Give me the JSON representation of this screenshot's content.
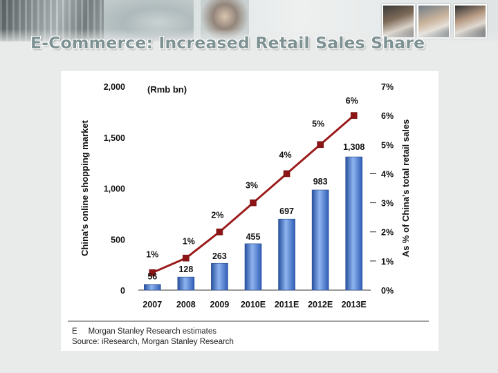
{
  "header": {
    "title": "E-Commerce: Increased Retail Sales Share"
  },
  "chart_data": {
    "type": "bar",
    "unit_note": "(Rmb bn)",
    "ylabel": "China's online shopping market",
    "y2label": "As % of China's total retail sales",
    "categories": [
      "2007",
      "2008",
      "2009",
      "2010E",
      "2011E",
      "2012E",
      "2013E"
    ],
    "ylim": [
      0,
      2000
    ],
    "yticks": [
      "0",
      "500",
      "1,000",
      "1,500",
      "2,000"
    ],
    "y2lim": [
      0,
      7
    ],
    "y2ticks": [
      "0%",
      "1%",
      "2%",
      "3%",
      "4%",
      "5%",
      "6%",
      "7%"
    ],
    "series": [
      {
        "type": "bar",
        "values": [
          56,
          128,
          263,
          455,
          697,
          983,
          1308
        ],
        "labels": [
          "56",
          "128",
          "263",
          "455",
          "697",
          "983",
          "1,308"
        ],
        "color": "#4d7fd1"
      },
      {
        "type": "line",
        "axis": "right",
        "values": [
          0.6,
          1.1,
          2.0,
          3.0,
          4.0,
          5.0,
          6.0
        ],
        "labels": [
          "1%",
          "1%",
          "2%",
          "3%",
          "4%",
          "5%",
          "6%"
        ],
        "color": "#9b1b1b"
      }
    ],
    "grid": false,
    "legend": "none"
  },
  "footer": {
    "note_marker": "E",
    "note_text": "Morgan Stanley Research estimates",
    "source": "Source: iResearch, Morgan Stanley Research"
  }
}
